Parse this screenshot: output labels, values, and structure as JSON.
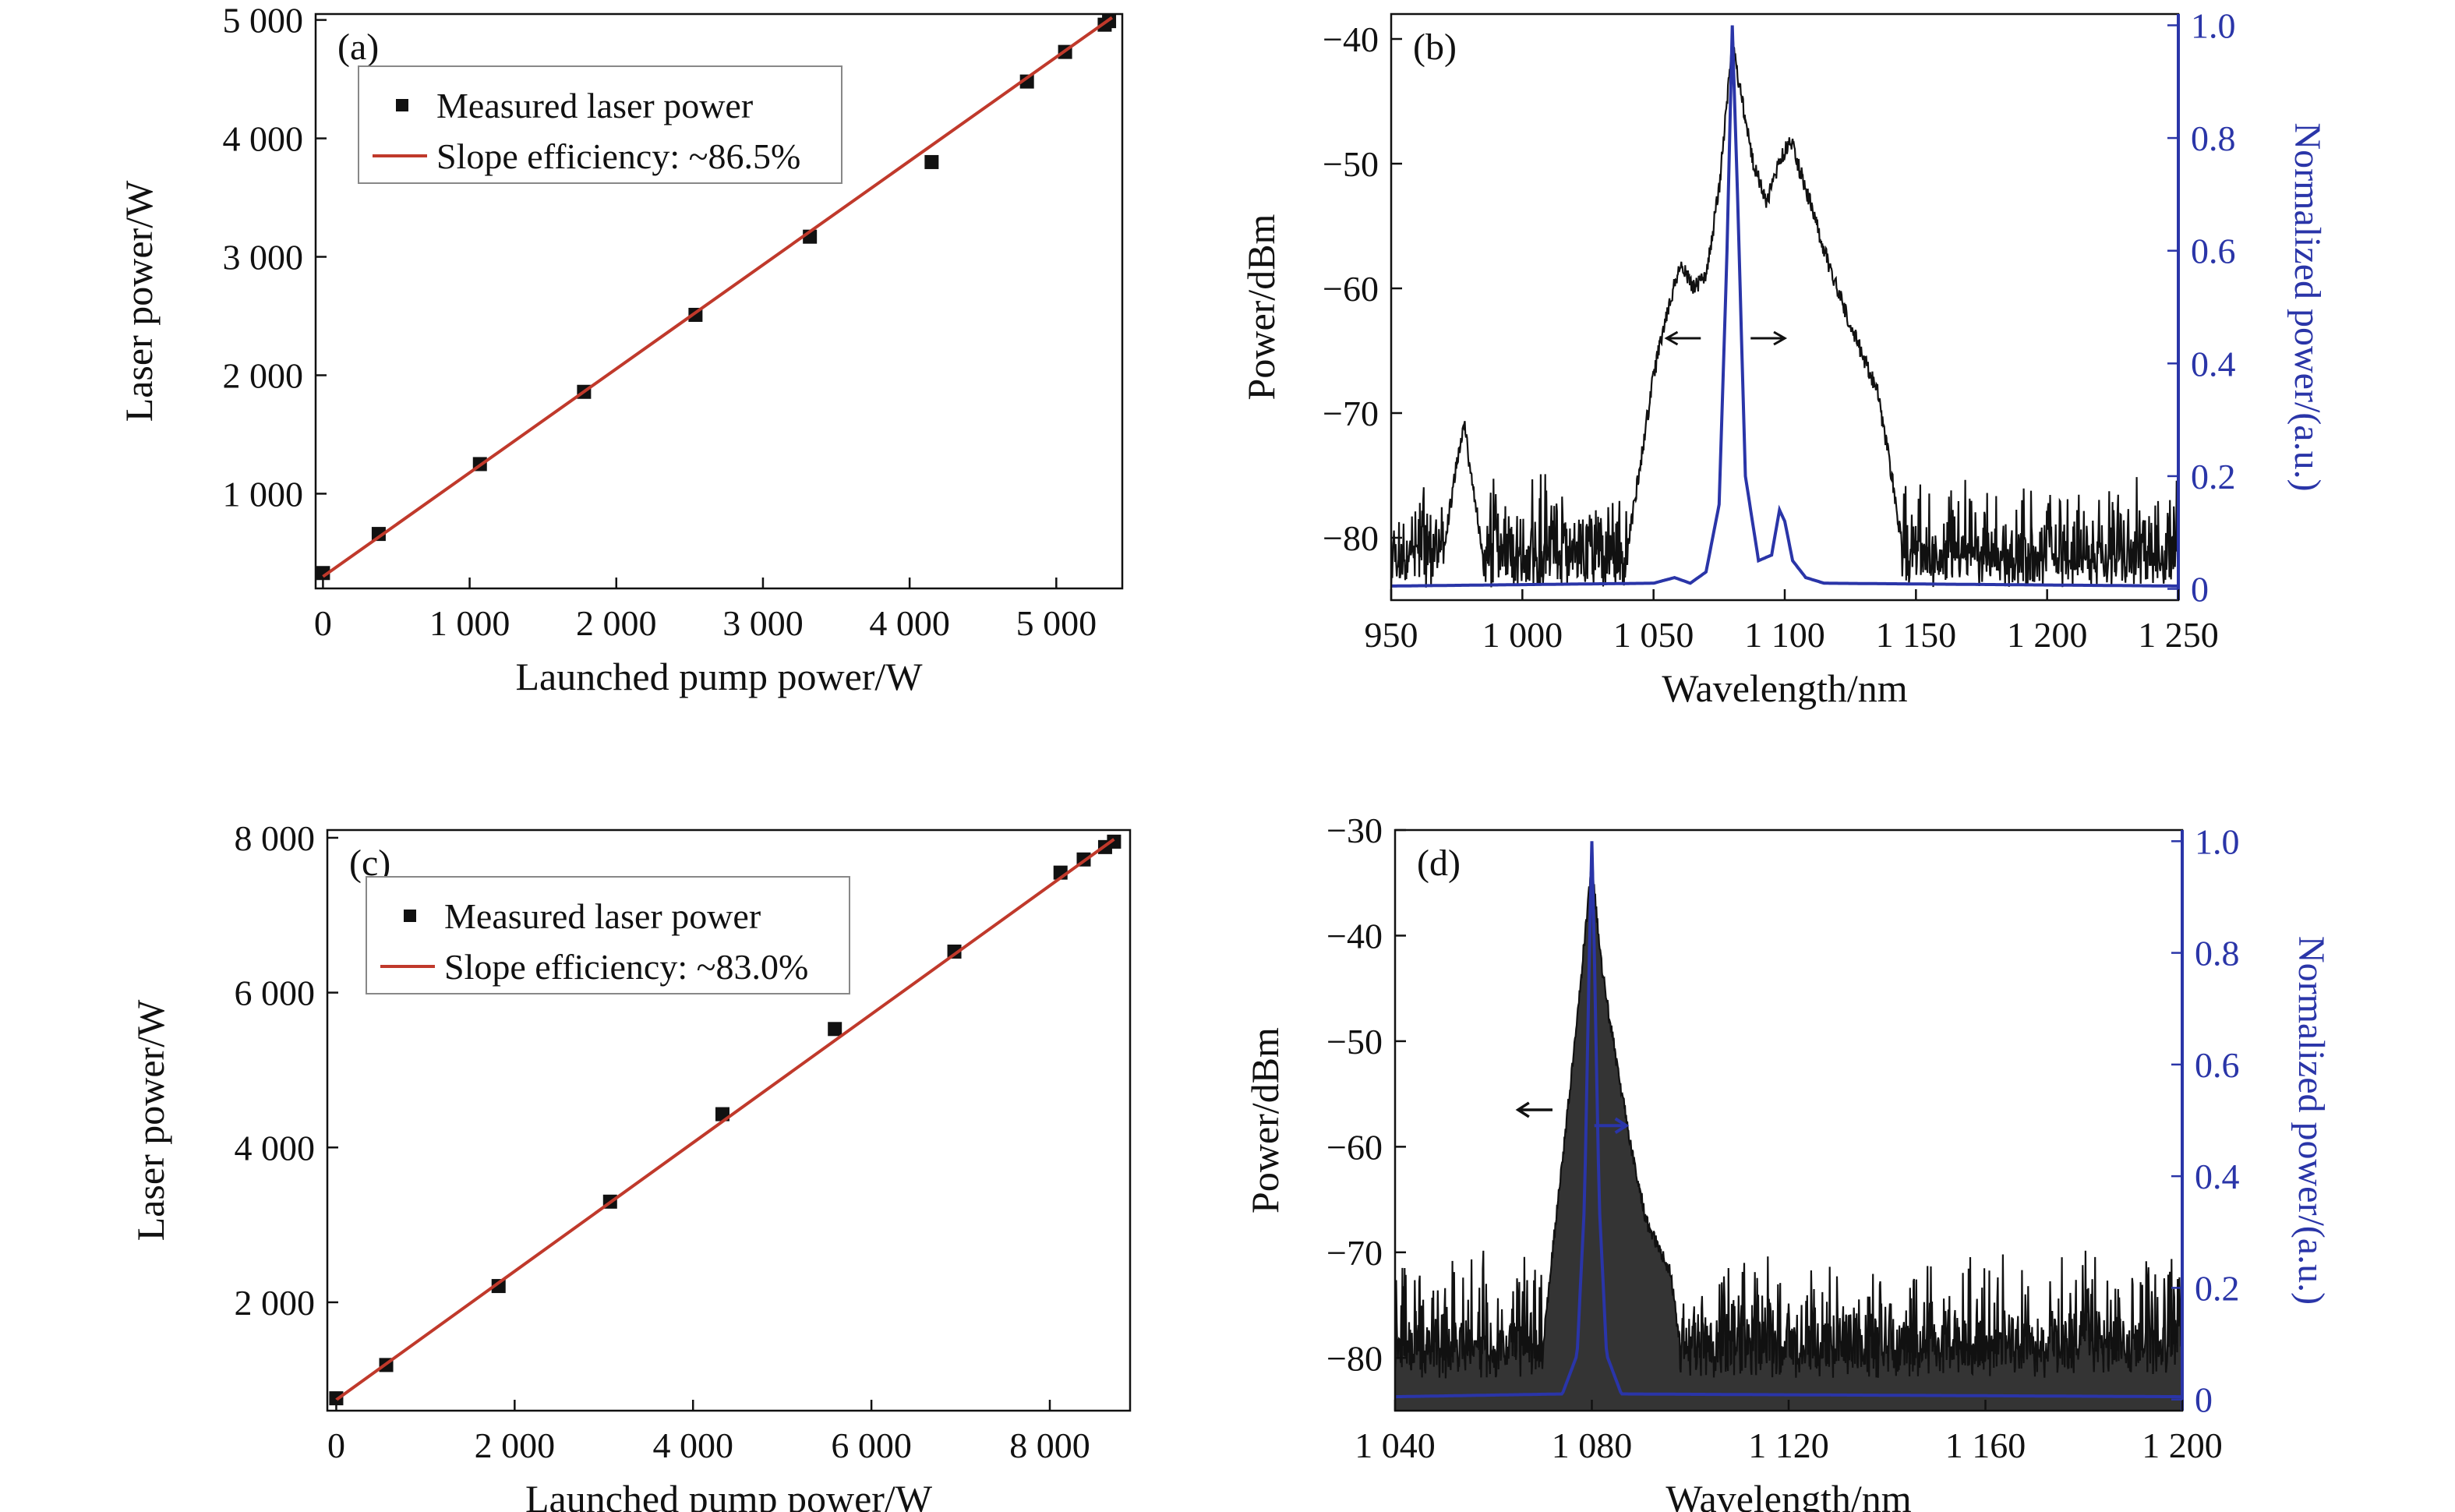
{
  "figure": {
    "colors": {
      "axis": "#111111",
      "fit_line": "#c0392b",
      "spectrum_dark": "#111111",
      "spectrum_blue": "#2a35a8",
      "right_axis": "#2a35a8"
    }
  },
  "chart_data": [
    {
      "id": "a",
      "type": "scatter",
      "panel_label": "(a)",
      "xlabel": "Launched pump power/W",
      "ylabel": "Laser power/W",
      "xlim": [
        -50,
        5450
      ],
      "ylim": [
        200,
        5050
      ],
      "xticks": [
        0,
        1000,
        2000,
        3000,
        4000,
        5000
      ],
      "xtick_labels": [
        "0",
        "1 000",
        "2 000",
        "3 000",
        "4 000",
        "5 000"
      ],
      "yticks": [
        1000,
        2000,
        3000,
        4000,
        5000
      ],
      "ytick_labels": [
        "1 000",
        "2 000",
        "3 000",
        "4 000",
        "5 000"
      ],
      "legend_position": "top-left",
      "series": [
        {
          "name": "Measured laser power",
          "kind": "markers",
          "x": [
            0,
            380,
            1070,
            1780,
            2540,
            3320,
            4150,
            4800,
            5060,
            5330,
            5360
          ],
          "y": [
            330,
            660,
            1250,
            1860,
            2510,
            3170,
            3800,
            4480,
            4730,
            4960,
            4990
          ]
        },
        {
          "name": "Slope efficiency: ~86.5%",
          "kind": "line",
          "x": [
            0,
            5380
          ],
          "y": [
            300,
            5020
          ]
        }
      ]
    },
    {
      "id": "b",
      "type": "line",
      "panel_label": "(b)",
      "xlabel": "Wavelength/nm",
      "ylabel": "Power/dBm",
      "y2label": "Normalized power/(a.u.)",
      "xlim": [
        950,
        1250
      ],
      "ylim": [
        -85,
        -38
      ],
      "y2lim": [
        -0.02,
        1.02
      ],
      "xticks": [
        950,
        1000,
        1050,
        1100,
        1150,
        1200,
        1250
      ],
      "xtick_labels": [
        "950",
        "1 000",
        "1 050",
        "1 100",
        "1 150",
        "1 200",
        "1 250"
      ],
      "yticks": [
        -80,
        -70,
        -60,
        -50,
        -40
      ],
      "ytick_labels": [
        "−80",
        "−70",
        "−60",
        "−50",
        "−40"
      ],
      "y2ticks": [
        0,
        0.2,
        0.4,
        0.6,
        0.8,
        1.0
      ],
      "y2tick_labels": [
        "0",
        "0.2",
        "0.4",
        "0.6",
        "0.8",
        "1.0"
      ],
      "series": [
        {
          "axis": "left",
          "kind": "noisy-line",
          "noise_floor": -81,
          "noise_amp": 4,
          "x": [
            950,
            970,
            975,
            978,
            981,
            985,
            1040,
            1045,
            1050,
            1055,
            1060,
            1065,
            1070,
            1075,
            1078,
            1080,
            1083,
            1088,
            1093,
            1098,
            1102,
            1108,
            1115,
            1125,
            1135,
            1140,
            1145,
            1150,
            1160,
            1250
          ],
          "y": [
            -81,
            -81,
            -74,
            -71,
            -76,
            -81,
            -81,
            -74,
            -67,
            -62,
            -58,
            -60,
            -59,
            -52,
            -45,
            -40,
            -44,
            -50,
            -53,
            -50,
            -48,
            -52,
            -57,
            -63,
            -68,
            -74,
            -81,
            -81,
            -81,
            -81
          ]
        },
        {
          "axis": "right",
          "kind": "line",
          "x": [
            950,
            1050,
            1058,
            1064,
            1070,
            1075,
            1078,
            1080,
            1082,
            1085,
            1090,
            1095,
            1098,
            1100,
            1103,
            1108,
            1115,
            1250
          ],
          "y": [
            0.005,
            0.01,
            0.02,
            0.01,
            0.03,
            0.15,
            0.6,
            1.0,
            0.7,
            0.2,
            0.05,
            0.06,
            0.14,
            0.12,
            0.05,
            0.02,
            0.01,
            0.005
          ]
        }
      ]
    },
    {
      "id": "c",
      "type": "scatter",
      "panel_label": "(c)",
      "xlabel": "Launched pump power/W",
      "ylabel": "Laser power/W",
      "xlim": [
        -100,
        8900
      ],
      "ylim": [
        600,
        8100
      ],
      "xticks": [
        0,
        2000,
        4000,
        6000,
        8000
      ],
      "xtick_labels": [
        "0",
        "2 000",
        "4 000",
        "6 000",
        "8 000"
      ],
      "yticks": [
        2000,
        4000,
        6000,
        8000
      ],
      "ytick_labels": [
        "2 000",
        "4 000",
        "6 000",
        "8 000"
      ],
      "legend_position": "top-left",
      "series": [
        {
          "name": "Measured laser power",
          "kind": "markers",
          "x": [
            0,
            560,
            1820,
            3070,
            4330,
            5590,
            6930,
            8120,
            8380,
            8620,
            8720
          ],
          "y": [
            760,
            1190,
            2210,
            3300,
            4430,
            5530,
            6530,
            7550,
            7720,
            7880,
            7950
          ]
        },
        {
          "name": "Slope efficiency: ~83.0%",
          "kind": "line",
          "x": [
            0,
            8720
          ],
          "y": [
            740,
            7980
          ]
        }
      ]
    },
    {
      "id": "d",
      "type": "line",
      "panel_label": "(d)",
      "xlabel": "Wavelength/nm",
      "ylabel": "Power/dBm",
      "y2label": "Normalized power/(a.u.)",
      "xlim": [
        1040,
        1200
      ],
      "ylim": [
        -85,
        -30
      ],
      "y2lim": [
        -0.02,
        1.02
      ],
      "xticks": [
        1040,
        1080,
        1120,
        1160,
        1200
      ],
      "xtick_labels": [
        "1 040",
        "1 080",
        "1 120",
        "1 160",
        "1 200"
      ],
      "yticks": [
        -80,
        -70,
        -60,
        -50,
        -40,
        -30
      ],
      "ytick_labels": [
        "−80",
        "−70",
        "−60",
        "−50",
        "−40",
        "−30"
      ],
      "y2ticks": [
        0,
        0.2,
        0.4,
        0.6,
        0.8,
        1.0
      ],
      "y2tick_labels": [
        "0",
        "0.2",
        "0.4",
        "0.6",
        "0.8",
        "1.0"
      ],
      "series": [
        {
          "axis": "left",
          "kind": "noisy-line",
          "noise_floor": -79,
          "noise_amp": 6,
          "x": [
            1040,
            1070,
            1072,
            1075,
            1078,
            1080,
            1082,
            1085,
            1088,
            1091,
            1096,
            1098,
            1200
          ],
          "y": [
            -79,
            -79,
            -70,
            -57,
            -43,
            -33,
            -43,
            -52,
            -60,
            -67,
            -72,
            -79,
            -79
          ]
        },
        {
          "axis": "right",
          "kind": "line",
          "x": [
            1040,
            1074,
            1077,
            1078.5,
            1079.5,
            1080,
            1080.5,
            1081.5,
            1083,
            1086,
            1200
          ],
          "y": [
            0.005,
            0.01,
            0.08,
            0.35,
            0.8,
            1.0,
            0.8,
            0.35,
            0.08,
            0.01,
            0.005
          ]
        }
      ]
    }
  ]
}
